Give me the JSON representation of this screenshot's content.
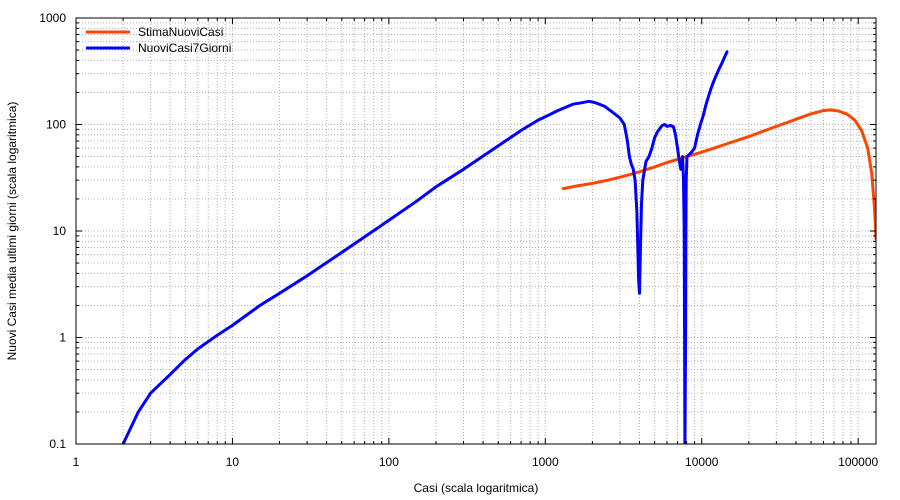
{
  "chart_data": {
    "type": "line",
    "title": "",
    "xlabel": "Casi (scala logaritmica)",
    "ylabel": "Nuovi Casi media ultimi giorni (scala logaritmica)",
    "x_scale": "log",
    "y_scale": "log",
    "xlim": [
      1,
      130000
    ],
    "ylim": [
      0.1,
      1000
    ],
    "x_ticks": [
      {
        "value": 1,
        "label": "1"
      },
      {
        "value": 10,
        "label": "10"
      },
      {
        "value": 100,
        "label": "100"
      },
      {
        "value": 1000,
        "label": "1000"
      },
      {
        "value": 10000,
        "label": "10000"
      },
      {
        "value": 100000,
        "label": "100000"
      }
    ],
    "y_ticks": [
      {
        "value": 0.1,
        "label": "0.1"
      },
      {
        "value": 1,
        "label": "1"
      },
      {
        "value": 10,
        "label": "10"
      },
      {
        "value": 100,
        "label": "100"
      },
      {
        "value": 1000,
        "label": "1000"
      }
    ],
    "grid": true,
    "legend_position": "top-left",
    "series": [
      {
        "name": "StimaNuoviCasi",
        "color": "#ff4500",
        "points": [
          [
            1300,
            25
          ],
          [
            1600,
            26.5
          ],
          [
            2000,
            28
          ],
          [
            2500,
            30
          ],
          [
            3000,
            32
          ],
          [
            3500,
            34
          ],
          [
            4000,
            36
          ],
          [
            5000,
            40
          ],
          [
            6000,
            44
          ],
          [
            7000,
            47
          ],
          [
            8000,
            50
          ],
          [
            10000,
            55
          ],
          [
            12000,
            60
          ],
          [
            15000,
            67
          ],
          [
            20000,
            77
          ],
          [
            25000,
            87
          ],
          [
            30000,
            96
          ],
          [
            40000,
            112
          ],
          [
            50000,
            126
          ],
          [
            60000,
            135
          ],
          [
            66000,
            137
          ],
          [
            75000,
            134
          ],
          [
            85000,
            125
          ],
          [
            95000,
            110
          ],
          [
            105000,
            88
          ],
          [
            115000,
            60
          ],
          [
            122000,
            35
          ],
          [
            127000,
            17
          ],
          [
            130000,
            8.5
          ]
        ]
      },
      {
        "name": "NuoviCasi7Giorni",
        "color": "#0000ff",
        "points": [
          [
            2,
            0.1
          ],
          [
            2.5,
            0.2
          ],
          [
            3,
            0.3
          ],
          [
            4,
            0.45
          ],
          [
            5,
            0.62
          ],
          [
            6,
            0.78
          ],
          [
            8,
            1.05
          ],
          [
            10,
            1.3
          ],
          [
            15,
            2.0
          ],
          [
            20,
            2.6
          ],
          [
            30,
            3.8
          ],
          [
            50,
            6.3
          ],
          [
            70,
            8.8
          ],
          [
            100,
            12.6
          ],
          [
            150,
            19
          ],
          [
            200,
            26
          ],
          [
            300,
            38
          ],
          [
            500,
            63
          ],
          [
            700,
            88
          ],
          [
            900,
            110
          ],
          [
            1000,
            118
          ],
          [
            1200,
            135
          ],
          [
            1500,
            155
          ],
          [
            1700,
            160
          ],
          [
            1900,
            165
          ],
          [
            2100,
            160
          ],
          [
            2400,
            148
          ],
          [
            2700,
            130
          ],
          [
            3000,
            115
          ],
          [
            3200,
            100
          ],
          [
            3350,
            70
          ],
          [
            3450,
            50
          ],
          [
            3550,
            42
          ],
          [
            3650,
            38
          ],
          [
            3750,
            30
          ],
          [
            3850,
            15
          ],
          [
            3900,
            7
          ],
          [
            3950,
            3.5
          ],
          [
            4000,
            2.6
          ],
          [
            4050,
            6
          ],
          [
            4120,
            18
          ],
          [
            4200,
            30
          ],
          [
            4400,
            45
          ],
          [
            4600,
            50
          ],
          [
            4800,
            60
          ],
          [
            5000,
            75
          ],
          [
            5200,
            85
          ],
          [
            5400,
            92
          ],
          [
            5600,
            98
          ],
          [
            5800,
            100
          ],
          [
            6000,
            96
          ],
          [
            6300,
            98
          ],
          [
            6600,
            95
          ],
          [
            6800,
            80
          ],
          [
            7000,
            60
          ],
          [
            7200,
            45
          ],
          [
            7350,
            38
          ],
          [
            7450,
            42
          ],
          [
            7550,
            50
          ],
          [
            7650,
            30
          ],
          [
            7720,
            10
          ],
          [
            7770,
            1
          ],
          [
            7800,
            0.1
          ],
          [
            7880,
            1
          ],
          [
            7920,
            10
          ],
          [
            7960,
            30
          ],
          [
            8050,
            50
          ],
          [
            8300,
            52
          ],
          [
            8600,
            55
          ],
          [
            9000,
            60
          ],
          [
            9400,
            80
          ],
          [
            9800,
            100
          ],
          [
            10200,
            120
          ],
          [
            10600,
            150
          ],
          [
            11000,
            180
          ],
          [
            11500,
            220
          ],
          [
            12000,
            260
          ],
          [
            12500,
            300
          ],
          [
            13000,
            340
          ],
          [
            13500,
            380
          ],
          [
            14000,
            430
          ],
          [
            14500,
            480
          ]
        ]
      }
    ]
  }
}
